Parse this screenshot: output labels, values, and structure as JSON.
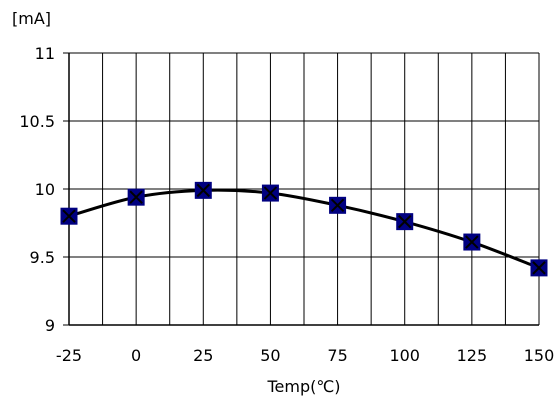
{
  "chart_data": {
    "type": "line",
    "title": "",
    "xlabel": "Temp(℃)",
    "ylabel": "[mA]",
    "xlim": [
      -25,
      150
    ],
    "ylim": [
      9,
      11
    ],
    "x_ticks": [
      -25,
      0,
      25,
      50,
      75,
      100,
      125,
      150
    ],
    "x_tick_labels": [
      "-25",
      "0",
      "25",
      "50",
      "75",
      "100",
      "125",
      "150"
    ],
    "y_ticks": [
      9,
      9.5,
      10,
      10.5,
      11
    ],
    "y_tick_labels": [
      "9",
      "9.5",
      "10",
      "10.5",
      "11"
    ],
    "x_minor_step": 12.5,
    "grid": true,
    "legend": "none",
    "series": [
      {
        "marker": "square-x",
        "color": "#000080",
        "x": [
          -25,
          0,
          25,
          50,
          75,
          100,
          125,
          150
        ],
        "y": [
          9.8,
          9.94,
          9.99,
          9.97,
          9.88,
          9.76,
          9.61,
          9.42
        ]
      }
    ]
  }
}
